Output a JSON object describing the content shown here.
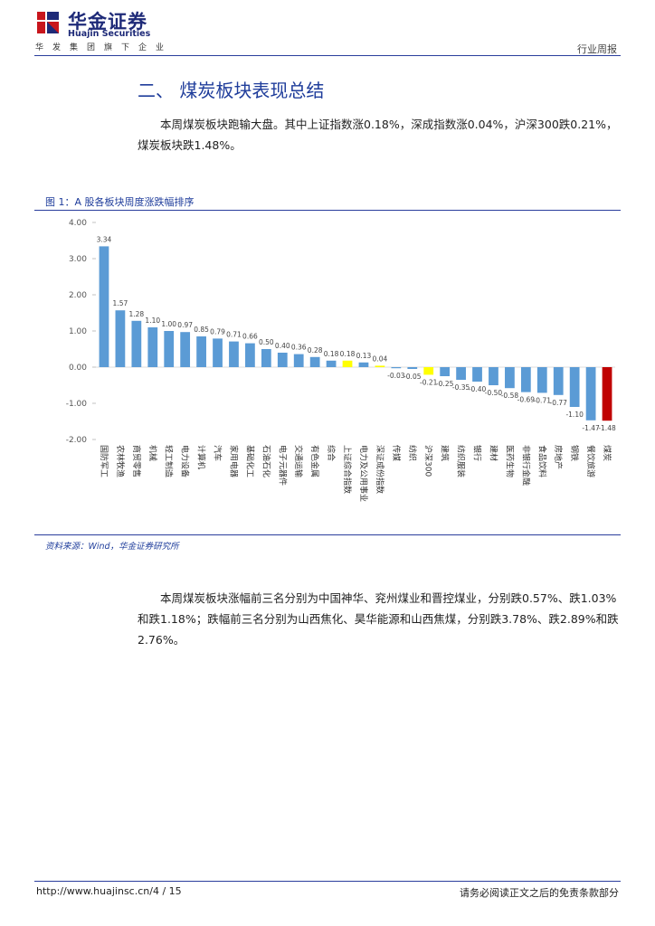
{
  "header": {
    "brand_cn": "华金证券",
    "brand_en": "Huajin Securities",
    "group_sub": "华发集团旗下企业",
    "report_type": "行业周报",
    "logo_color": "#c8161d",
    "brand_color": "#1e2a78"
  },
  "section": {
    "title": "二、 煤炭板块表现总结",
    "para1": "本周煤炭板块跑输大盘。其中上证指数涨0.18%，深成指数涨0.04%，沪深300跌0.21%，煤炭板块跌1.48%。",
    "para2": "本周煤炭板块涨幅前三名分别为中国神华、兖州煤业和晋控煤业，分别跌0.57%、跌1.03%和跌1.18%；跌幅前三名分别为山西焦化、昊华能源和山西焦煤，分别跌3.78%、跌2.89%和跌2.76%。"
  },
  "figure": {
    "caption": "图 1：A 股各板块周度涨跌幅排序",
    "source": "资料来源：Wind，华金证券研究所"
  },
  "chart_data": {
    "type": "bar",
    "title": "A 股各板块周度涨跌幅排序",
    "ylim": [
      -2.0,
      4.0
    ],
    "yticks": [
      "4.00",
      "3.00",
      "2.00",
      "1.00",
      "0.00",
      "-1.00",
      "-2.00"
    ],
    "ytick_values": [
      4,
      3,
      2,
      1,
      0,
      -1,
      -2
    ],
    "categories": [
      "国防军工",
      "农林牧渔",
      "商贸零售",
      "机械",
      "轻工制造",
      "电力设备",
      "计算机",
      "汽车",
      "家用电器",
      "基础化工",
      "石油石化",
      "电子元器件",
      "交通运输",
      "有色金属",
      "综合",
      "上证综合指数",
      "电力及公用事业",
      "深证成份指数",
      "传媒",
      "纺织",
      "沪深300",
      "建筑",
      "纺织服装",
      "银行",
      "建材",
      "医药生物",
      "非银行金融",
      "食品饮料",
      "房地产",
      "钢铁",
      "餐饮旅游",
      "煤炭"
    ],
    "values": [
      3.34,
      1.57,
      1.28,
      1.1,
      1.0,
      0.97,
      0.85,
      0.79,
      0.71,
      0.66,
      0.5,
      0.4,
      0.36,
      0.28,
      0.18,
      0.18,
      0.13,
      0.04,
      -0.03,
      -0.05,
      -0.21,
      -0.25,
      -0.35,
      -0.4,
      -0.5,
      -0.58,
      -0.69,
      -0.71,
      -0.77,
      -1.1,
      -1.47,
      -1.48
    ],
    "labels": [
      "3.34",
      "1.57",
      "1.28",
      "1.10",
      "1.00",
      "0.97",
      "0.85",
      "0.79",
      "0.71",
      "0.66",
      "0.50",
      "0.40",
      "0.36",
      "0.28",
      "0.18",
      "0.18",
      "0.13",
      "0.04",
      "-0.03",
      "-0.05",
      "-0.21",
      "-0.25",
      "-0.35",
      "-0.40",
      "-0.50",
      "-0.58",
      "-0.69",
      "-0.71",
      "-0.77",
      "-1.10",
      "-1.47",
      "-1.48"
    ],
    "colors": {
      "default": "#5b9bd5",
      "index": "#ffff00",
      "coal": "#c00000"
    },
    "highlight_index": [
      15,
      17,
      20
    ],
    "highlight_coal": [
      31
    ],
    "grid": false
  },
  "footer": {
    "left": "http://www.huajinsc.cn/4 / 15",
    "right": "请务必阅读正文之后的免责条款部分"
  }
}
